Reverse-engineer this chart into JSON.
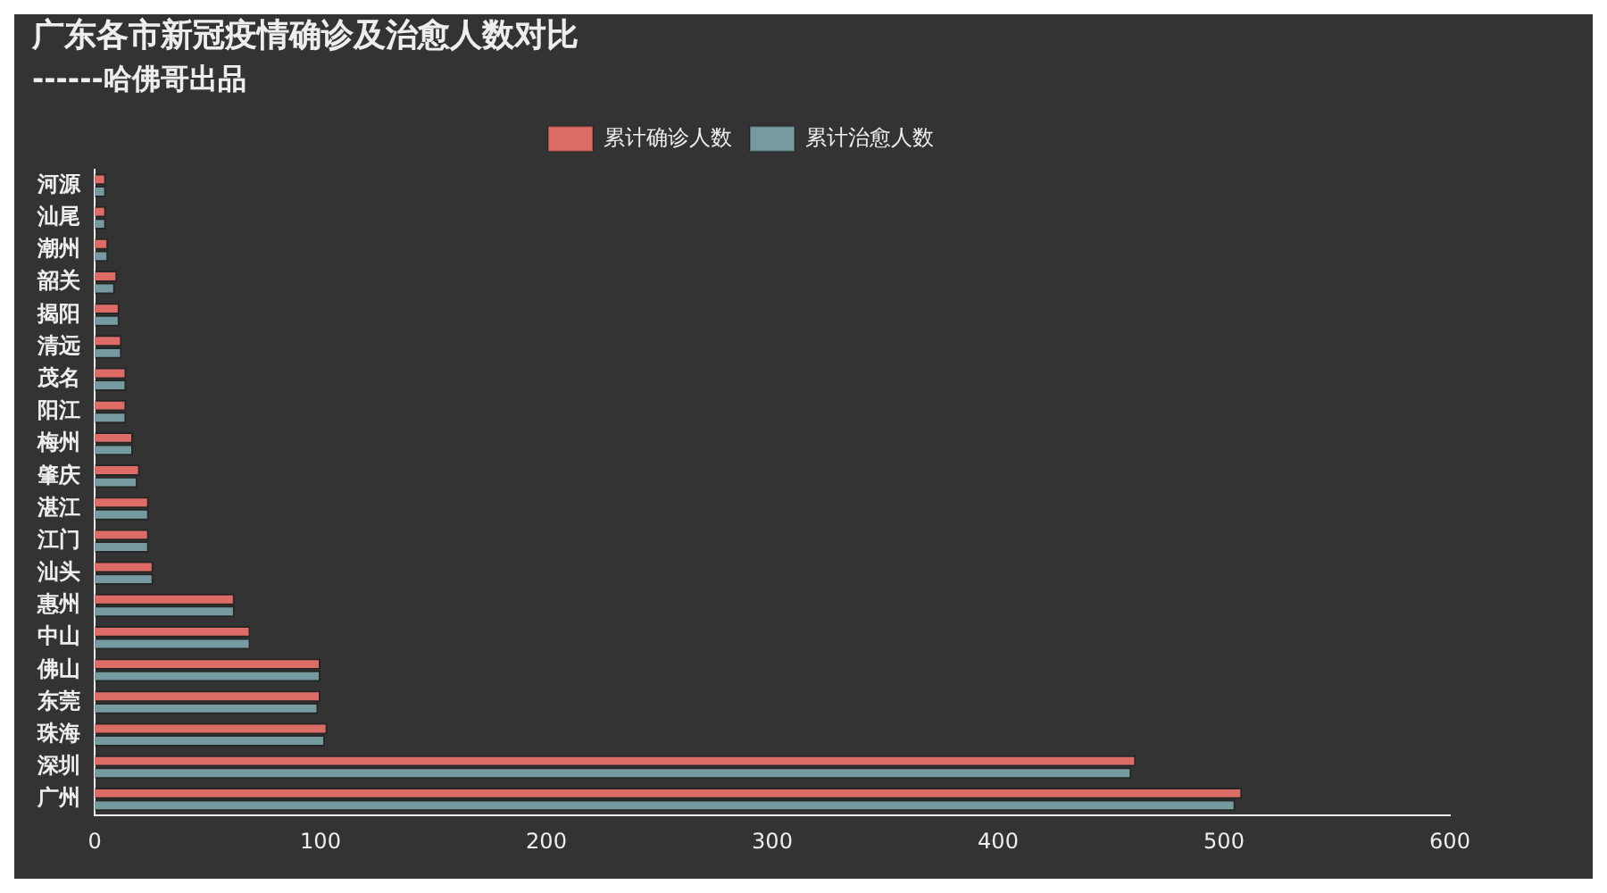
{
  "chart_data": {
    "type": "bar",
    "orientation": "horizontal",
    "title": "广东各市新冠疫情确诊及治愈人数对比",
    "subtitle": "------哈佛哥出品",
    "categories": [
      "河源",
      "汕尾",
      "潮州",
      "韶关",
      "揭阳",
      "清远",
      "茂名",
      "阳江",
      "梅州",
      "肇庆",
      "湛江",
      "江门",
      "汕头",
      "惠州",
      "中山",
      "佛山",
      "东莞",
      "珠海",
      "深圳",
      "广州"
    ],
    "series": [
      {
        "name": "累计确诊人数",
        "color": "#dd6b66",
        "values": [
          5,
          5,
          6,
          10,
          11,
          12,
          14,
          14,
          17,
          20,
          24,
          24,
          26,
          62,
          69,
          100,
          100,
          103,
          461,
          508
        ]
      },
      {
        "name": "累计治愈人数",
        "color": "#759aa0",
        "values": [
          5,
          5,
          6,
          9,
          11,
          12,
          14,
          14,
          17,
          19,
          24,
          24,
          26,
          62,
          69,
          100,
          99,
          102,
          459,
          505
        ]
      }
    ],
    "xlim": [
      0,
      600
    ],
    "xticks": [
      0,
      100,
      200,
      300,
      400,
      500,
      600
    ],
    "grid": false,
    "legend": "top"
  }
}
